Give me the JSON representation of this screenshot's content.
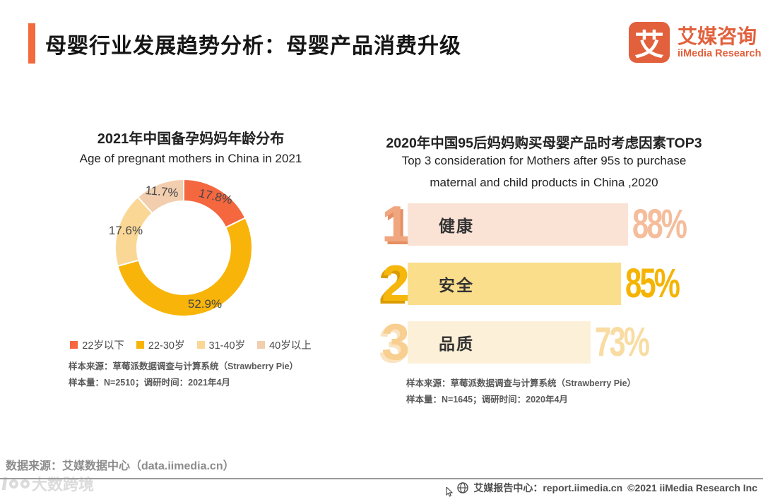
{
  "header": {
    "title": "母婴行业发展趋势分析：母婴产品消费升级",
    "logo_glyph": "艾",
    "brand_cn": "艾媒咨询",
    "brand_en": "iiMedia Research"
  },
  "left_chart": {
    "title": "2021年中国备孕妈妈年龄分布",
    "subtitle": "Age of pregnant mothers in China in 2021",
    "legend": [
      {
        "label": "22岁以下",
        "color": "#F4673F"
      },
      {
        "label": "22-30岁",
        "color": "#F8B409"
      },
      {
        "label": "31-40岁",
        "color": "#FAD795"
      },
      {
        "label": "40岁以上",
        "color": "#F2CEAE"
      }
    ],
    "note1": "样本来源：草莓派数据调查与计算系统（Strawberry Pie）",
    "note2": "样本量：N=2510；调研时间：2021年4月"
  },
  "right_chart": {
    "title": "2020年中国95后妈妈购买母婴产品时考虑因素TOP3",
    "subtitle_line1": "Top 3 consideration for Mothers after 95s to purchase",
    "subtitle_line2": "maternal and child products in China ,2020",
    "items": [
      {
        "rank": "1",
        "label": "健康",
        "value": "88%"
      },
      {
        "rank": "2",
        "label": "安全",
        "value": "85%"
      },
      {
        "rank": "3",
        "label": "品质",
        "value": "73%"
      }
    ],
    "note1": "样本来源：草莓派数据调查与计算系统（Strawberry Pie）",
    "note2": "样本量：N=1645；调研时间：2020年4月"
  },
  "footer": {
    "source": "数据来源：艾媒数据中心（data.iimedia.cn）",
    "report_center": "艾媒报告中心：report.iimedia.cn",
    "copyright": "©2021  iiMedia Research Inc",
    "watermark": "大数跨境"
  },
  "palette": {
    "accent": "#F26A3D",
    "logo": "#E2603C",
    "donut_colors": [
      "#F4673F",
      "#F8B409",
      "#FAD795",
      "#F2CEAE"
    ],
    "bar_fills": [
      "#FAE3D5",
      "#FADE8C",
      "#FCF0D8"
    ],
    "pct_colors": [
      "#F5BD9B",
      "#F5B402",
      "#F9DCA2"
    ]
  },
  "chart_data": [
    {
      "type": "pie",
      "donut": true,
      "title": "2021年中国备孕妈妈年龄分布",
      "subtitle": "Age of pregnant mothers in China in 2021",
      "categories": [
        "22岁以下",
        "22-30岁",
        "31-40岁",
        "40岁以上"
      ],
      "values": [
        17.8,
        52.9,
        17.6,
        11.7
      ],
      "unit": "%",
      "colors": [
        "#F4673F",
        "#F8B409",
        "#FAD795",
        "#F2CEAE"
      ],
      "start_angle": "12-oclock",
      "direction": "clockwise",
      "legend_position": "bottom"
    },
    {
      "type": "bar",
      "orientation": "horizontal",
      "title": "2020年中国95后妈妈购买母婴产品时考虑因素TOP3",
      "categories": [
        "健康",
        "安全",
        "品质"
      ],
      "values": [
        88,
        85,
        73
      ],
      "unit": "%",
      "xlim": [
        0,
        100
      ],
      "grid": false
    }
  ]
}
